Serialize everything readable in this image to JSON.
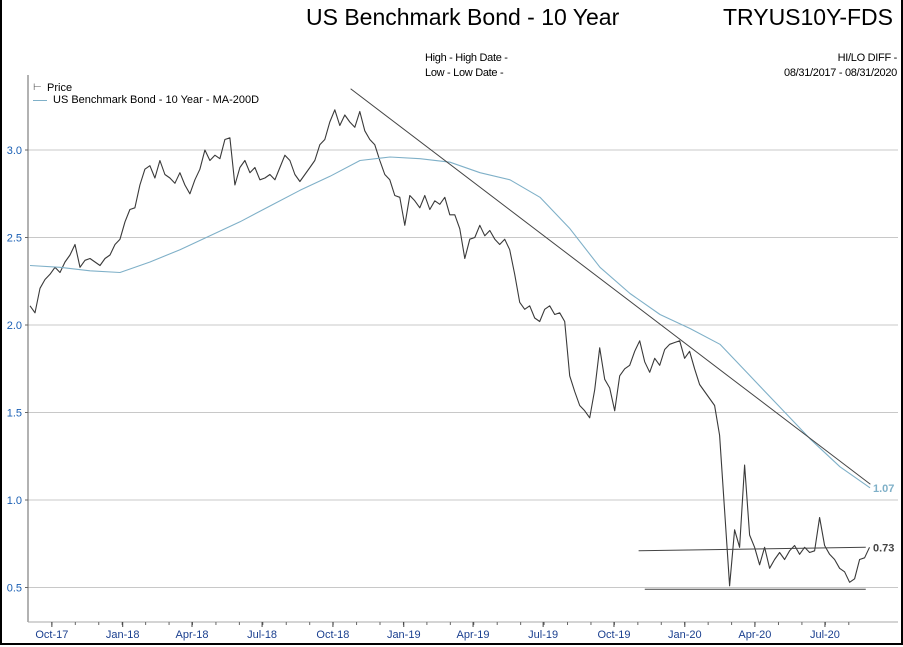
{
  "header": {
    "title": "US Benchmark Bond - 10 Year",
    "ticker": "TRYUS10Y-FDS",
    "high_label": "High - High Date -",
    "low_label": "Low - Low Date -",
    "hilo_label": "HI/LO DIFF -",
    "date_range": "08/31/2017 - 08/31/2020"
  },
  "colors": {
    "price": "#3a3a3a",
    "ma": "#7fb0c8",
    "trend": "#444444",
    "grid": "#c8c8c8",
    "ytick": "#1a5fb4"
  },
  "chart_data": {
    "type": "line",
    "title": "US Benchmark Bond - 10 Year",
    "x_unit": "days since 08/31/2017",
    "xlim": [
      0,
      1096
    ],
    "ylim": [
      0.35,
      3.42
    ],
    "grid": true,
    "legend_placement": "top-left",
    "legend": [
      "Price",
      "US Benchmark Bond - 10 Year - MA-200D"
    ],
    "y_ticks": [
      "0.5",
      "1.0",
      "1.5",
      "2.0",
      "2.5",
      "3.0"
    ],
    "x_ticks": [
      {
        "label": "Oct-17",
        "day": 31
      },
      {
        "label": "Jan-18",
        "day": 123
      },
      {
        "label": "Apr-18",
        "day": 213
      },
      {
        "label": "Jul-18",
        "day": 304
      },
      {
        "label": "Oct-18",
        "day": 396
      },
      {
        "label": "Jan-19",
        "day": 488
      },
      {
        "label": "Apr-19",
        "day": 578
      },
      {
        "label": "Jul-19",
        "day": 669
      },
      {
        "label": "Oct-19",
        "day": 761
      },
      {
        "label": "Jan-20",
        "day": 853
      },
      {
        "label": "Apr-20",
        "day": 944
      },
      {
        "label": "Jul-20",
        "day": 1035
      }
    ],
    "series": [
      {
        "name": "Price",
        "start_day": 2.6,
        "step_days": 6.49,
        "values": [
          2.11,
          2.07,
          2.21,
          2.26,
          2.29,
          2.33,
          2.3,
          2.36,
          2.4,
          2.46,
          2.33,
          2.37,
          2.38,
          2.36,
          2.34,
          2.38,
          2.4,
          2.46,
          2.49,
          2.59,
          2.66,
          2.67,
          2.8,
          2.89,
          2.91,
          2.84,
          2.94,
          2.86,
          2.84,
          2.81,
          2.87,
          2.8,
          2.75,
          2.83,
          2.89,
          3.0,
          2.94,
          2.97,
          2.95,
          3.06,
          3.07,
          2.8,
          2.9,
          2.94,
          2.87,
          2.9,
          2.83,
          2.84,
          2.86,
          2.83,
          2.9,
          2.97,
          2.94,
          2.86,
          2.82,
          2.86,
          2.9,
          2.94,
          3.03,
          3.06,
          3.16,
          3.23,
          3.14,
          3.2,
          3.16,
          3.13,
          3.22,
          3.11,
          3.06,
          3.03,
          2.94,
          2.86,
          2.83,
          2.74,
          2.73,
          2.57,
          2.74,
          2.71,
          2.67,
          2.74,
          2.66,
          2.71,
          2.69,
          2.73,
          2.63,
          2.63,
          2.55,
          2.38,
          2.49,
          2.5,
          2.57,
          2.51,
          2.54,
          2.49,
          2.46,
          2.49,
          2.43,
          2.29,
          2.13,
          2.09,
          2.11,
          2.04,
          2.02,
          2.09,
          2.11,
          2.06,
          2.07,
          2.02,
          1.71,
          1.62,
          1.54,
          1.51,
          1.47,
          1.63,
          1.87,
          1.69,
          1.64,
          1.51,
          1.71,
          1.75,
          1.77,
          1.85,
          1.91,
          1.79,
          1.73,
          1.81,
          1.77,
          1.86,
          1.89,
          1.9,
          1.91,
          1.81,
          1.85,
          1.75,
          1.66,
          1.62,
          1.58,
          1.54,
          1.37,
          0.94,
          0.51,
          0.83,
          0.73,
          1.2,
          0.8,
          0.73,
          0.63,
          0.73,
          0.61,
          0.66,
          0.7,
          0.66,
          0.71,
          0.74,
          0.69,
          0.73,
          0.7,
          0.71,
          0.9,
          0.74,
          0.69,
          0.66,
          0.61,
          0.59,
          0.53,
          0.55,
          0.66,
          0.67,
          0.73
        ]
      },
      {
        "name": "US Benchmark Bond - 10 Year - MA-200D",
        "start_day": 2.6,
        "step_days": 38.96,
        "values": [
          2.34,
          2.33,
          2.31,
          2.3,
          2.36,
          2.43,
          2.51,
          2.59,
          2.68,
          2.77,
          2.85,
          2.94,
          2.96,
          2.95,
          2.93,
          2.87,
          2.83,
          2.73,
          2.55,
          2.33,
          2.18,
          2.06,
          1.98,
          1.89,
          1.71,
          1.53,
          1.35,
          1.19,
          1.07
        ]
      }
    ],
    "trend_lines": [
      {
        "name": "downtrend",
        "from": [
          419,
          3.35
        ],
        "to": [
          1094,
          1.09
        ]
      },
      {
        "name": "resistance",
        "from": [
          793,
          0.71
        ],
        "to": [
          1088,
          0.73
        ]
      },
      {
        "name": "support",
        "from": [
          801,
          0.49
        ],
        "to": [
          1088,
          0.49
        ]
      }
    ],
    "end_labels": {
      "ma": "1.07",
      "price": "0.73"
    }
  }
}
